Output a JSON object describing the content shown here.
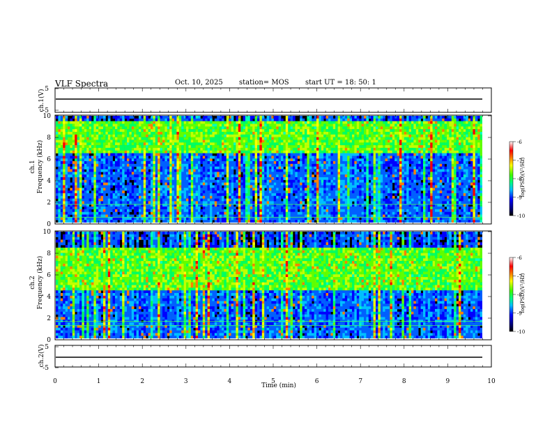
{
  "header": {
    "title": "VLF Spectra",
    "date": "Oct. 10, 2025",
    "station": "station= MOS",
    "start": "start  UT =   18: 50: 1"
  },
  "axes": {
    "ch1_waveform_label": "ch.1(V)",
    "ch2_waveform_label": "ch.2(V)",
    "ch1_spec_label": "ch.1\nFrequency (kHz)",
    "ch2_spec_label": "ch.2\nFrequency (kHz)",
    "xlabel": "Time  (min)",
    "colorbar_label": "log(PSD)(V²/Hz)"
  },
  "colors": {
    "background": "#000000",
    "scale": [
      "#000000",
      "#00008b",
      "#0000ff",
      "#00bfff",
      "#00ffa0",
      "#40ff00",
      "#ffff00",
      "#ff8000",
      "#ff0000",
      "#ffffff"
    ]
  },
  "chart_data": [
    {
      "type": "line",
      "title": "",
      "ylabel": "ch.1(V)",
      "xlim": [
        0,
        10
      ],
      "ylim": [
        -5,
        5
      ],
      "yticks": [
        "5",
        "-5"
      ],
      "x_extent_min": 9.83,
      "approx_value": 0
    },
    {
      "type": "heatmap",
      "ylabel": "ch.1 Frequency (kHz)",
      "xlim": [
        0,
        10
      ],
      "ylim": [
        0,
        10
      ],
      "yticks": [
        "0",
        "2",
        "4",
        "6",
        "8",
        "10"
      ],
      "colorbar": {
        "label": "log(PSD)(V²/Hz)",
        "ticks": [
          "-6",
          "-7",
          "-8",
          "-9",
          "-10"
        ],
        "range": [
          -10,
          -6
        ]
      },
      "description_bands_khz": {
        "strong_band": [
          6.5,
          9.5
        ],
        "line_freqs": [
          1.7,
          0.5
        ]
      }
    },
    {
      "type": "heatmap",
      "ylabel": "ch.2 Frequency (kHz)",
      "xlim": [
        0,
        10
      ],
      "ylim": [
        0,
        10
      ],
      "yticks": [
        "0",
        "2",
        "4",
        "6",
        "8",
        "10"
      ],
      "colorbar": {
        "label": "log(PSD)(V²/Hz)",
        "ticks": [
          "-6",
          "-7",
          "-8",
          "-9",
          "-10"
        ],
        "range": [
          -10,
          -6
        ]
      },
      "description_bands_khz": {
        "strong_band": [
          4.5,
          8.5
        ],
        "line_freqs": [
          1.2,
          1.6
        ]
      }
    },
    {
      "type": "line",
      "title": "",
      "ylabel": "ch.2(V)",
      "xlim": [
        0,
        10
      ],
      "ylim": [
        -5,
        5
      ],
      "yticks": [
        "5",
        "-5"
      ],
      "x_extent_min": 9.83,
      "approx_value": 0
    }
  ],
  "xaxis": {
    "ticks": [
      "0",
      "1",
      "2",
      "3",
      "4",
      "5",
      "6",
      "7",
      "8",
      "9",
      "10"
    ]
  }
}
